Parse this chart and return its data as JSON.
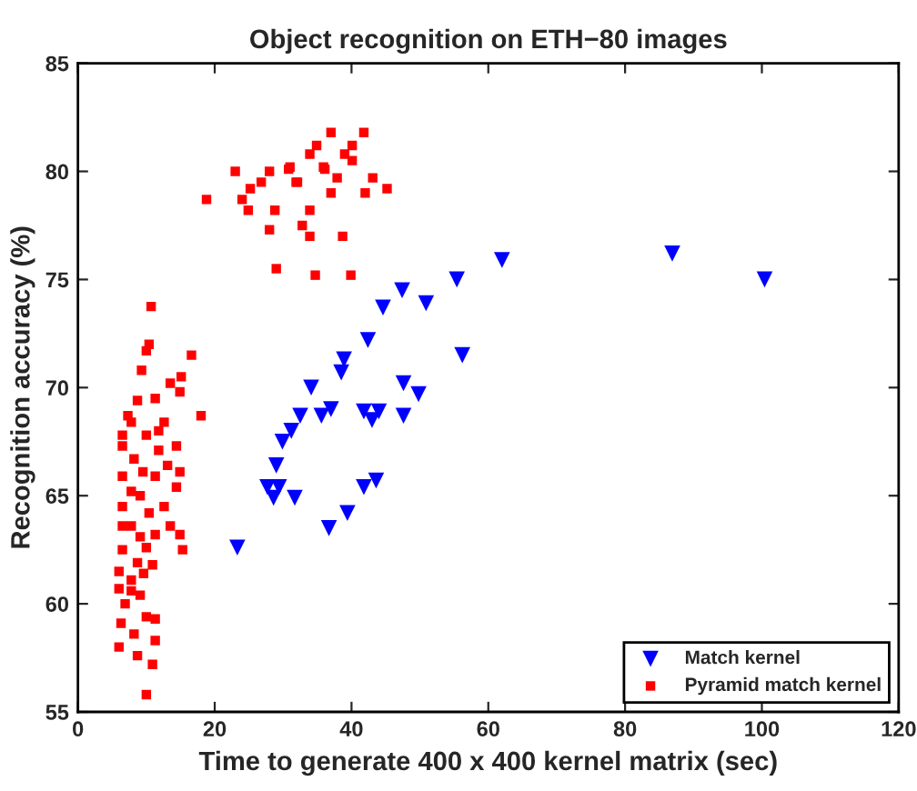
{
  "chart_data": {
    "type": "scatter",
    "title": "Object recognition on ETH−80 images",
    "xlabel": "Time to generate 400 x 400 kernel matrix (sec)",
    "ylabel": "Recognition accuracy (%)",
    "xlim": [
      0,
      120
    ],
    "xticks": [
      0,
      20,
      40,
      60,
      80,
      100,
      120
    ],
    "ylim": [
      55,
      85
    ],
    "yticks": [
      55,
      60,
      65,
      70,
      75,
      80,
      85
    ],
    "grid": false,
    "legend": "bottom right",
    "series": [
      {
        "name": "Match kernel",
        "color": "#0000ff",
        "marker": "triangle",
        "x": [
          86.9,
          100.4,
          62.0,
          55.4,
          47.4,
          50.9,
          44.6,
          42.4,
          56.2,
          38.9,
          38.5,
          34.1,
          47.6,
          49.8,
          32.5,
          35.6,
          37.0,
          41.8,
          43.0,
          44.0,
          47.6,
          31.2,
          29.9,
          29.0,
          29.4,
          31.7,
          41.8,
          43.6,
          39.4,
          36.7,
          23.3,
          28.6,
          27.7
        ],
        "values": [
          76.2,
          75.0,
          75.9,
          75.0,
          74.5,
          73.9,
          73.7,
          72.2,
          71.5,
          71.3,
          70.7,
          70.0,
          70.2,
          69.7,
          68.7,
          68.7,
          69.0,
          68.9,
          68.5,
          68.9,
          68.7,
          68.0,
          67.5,
          66.4,
          65.4,
          64.9,
          65.4,
          65.7,
          64.2,
          63.5,
          62.6,
          64.9,
          65.4
        ]
      },
      {
        "name": "Pyramid match kernel",
        "color": "#ff0000",
        "marker": "square",
        "x": [
          37.0,
          41.8,
          34.9,
          40.1,
          33.9,
          39.0,
          40.1,
          23.0,
          28.0,
          31.0,
          35.9,
          26.8,
          31.9,
          37.9,
          43.1,
          45.2,
          25.2,
          18.8,
          24.0,
          37.0,
          42.0,
          24.9,
          28.8,
          33.9,
          28.0,
          32.8,
          33.9,
          38.7,
          30.8,
          32.1,
          36.1,
          29.0,
          34.7,
          39.9,
          10.7,
          10.4,
          10.0,
          9.3,
          16.6,
          15.1,
          13.5,
          14.9,
          18.0,
          8.7,
          11.3,
          12.6,
          7.3,
          6.5,
          10.0,
          14.4,
          11.8,
          8.2,
          6.5,
          13.1,
          14.9,
          11.3,
          14.4,
          9.1,
          6.5,
          12.6,
          10.4,
          7.8,
          13.5,
          11.3,
          14.9,
          6.5,
          10.0,
          15.3,
          8.7,
          10.9,
          6.0,
          7.8,
          6.0,
          9.1,
          6.9,
          10.0,
          11.3,
          6.3,
          8.2,
          11.3,
          6.0,
          8.7,
          10.9,
          10.0,
          6.5,
          7.8,
          7.8,
          6.5,
          9.1,
          11.8,
          9.5,
          7.8,
          9.6
        ],
        "values": [
          81.8,
          81.8,
          81.2,
          81.2,
          80.8,
          80.8,
          80.5,
          80.0,
          80.0,
          80.2,
          80.2,
          79.5,
          79.5,
          79.7,
          79.7,
          79.2,
          79.2,
          78.7,
          78.7,
          79.0,
          79.0,
          78.2,
          78.2,
          78.2,
          77.3,
          77.5,
          77.0,
          77.0,
          80.1,
          79.5,
          80.1,
          75.5,
          75.2,
          75.2,
          73.75,
          72.0,
          71.7,
          70.8,
          71.5,
          70.5,
          70.2,
          69.8,
          68.7,
          69.4,
          69.5,
          68.4,
          68.7,
          67.8,
          67.8,
          67.3,
          67.1,
          66.7,
          65.9,
          66.4,
          66.1,
          65.9,
          65.4,
          65.0,
          64.5,
          64.5,
          64.2,
          63.6,
          63.6,
          63.2,
          63.2,
          62.5,
          62.6,
          62.5,
          61.9,
          61.8,
          61.5,
          61.1,
          60.7,
          60.4,
          60.0,
          59.4,
          59.3,
          59.1,
          58.6,
          58.3,
          58.0,
          57.6,
          57.2,
          55.8,
          67.3,
          68.4,
          65.2,
          63.6,
          63.1,
          68.0,
          66.1,
          60.6,
          61.4
        ]
      }
    ]
  }
}
